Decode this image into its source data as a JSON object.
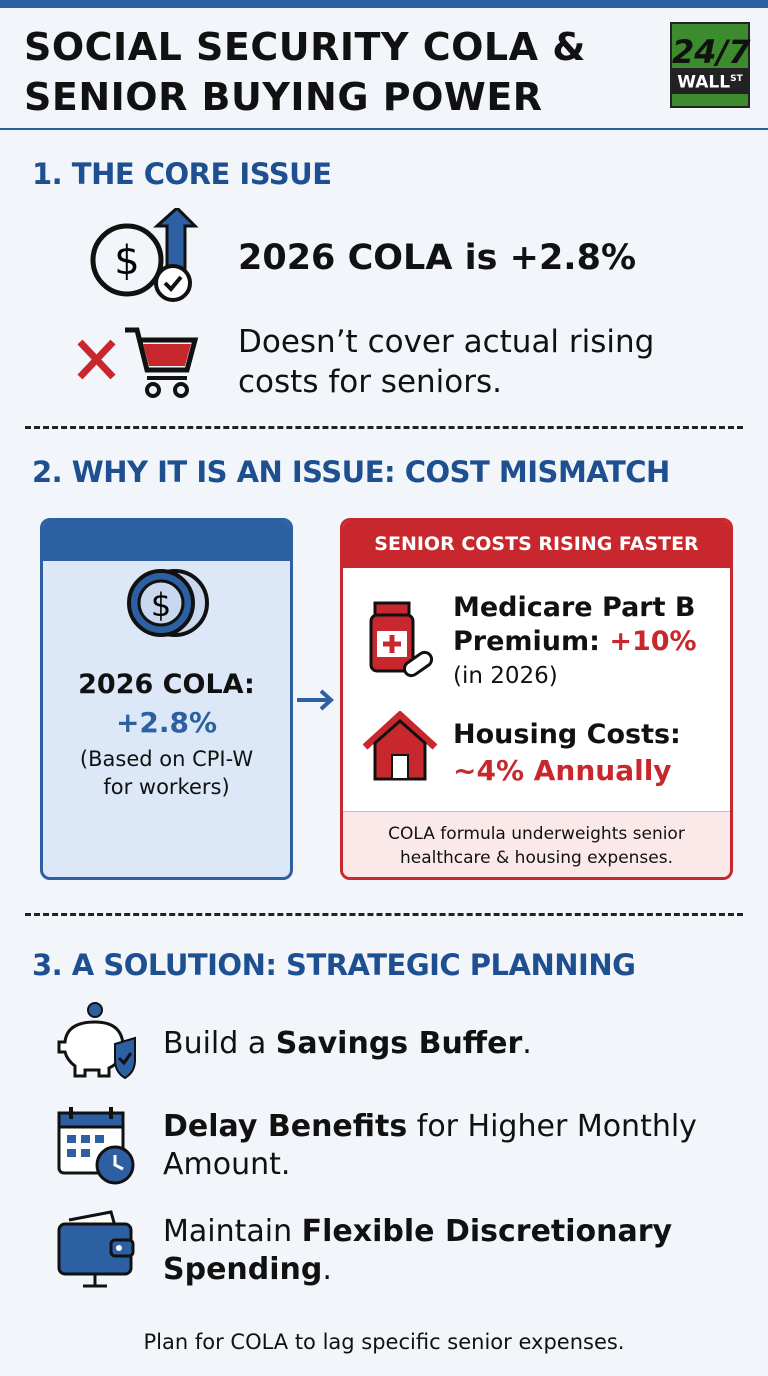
{
  "header": {
    "title_lines": [
      "SOCIAL SECURITY COLA &",
      "SENIOR BUYING POWER"
    ],
    "logo": {
      "top": "24/7",
      "bottom": "WALL",
      "sup": "ST"
    }
  },
  "section1": {
    "heading": "1. THE CORE ISSUE",
    "items": [
      "2026 COLA is +2.8%",
      "Doesn’t cover actual rising costs for seniors."
    ]
  },
  "section2": {
    "heading": "2. WHY IT IS AN ISSUE: COST MISMATCH",
    "left": {
      "title": "2026 COLA:",
      "value": "+2.8%",
      "note": "(Based on CPI-W for workers)"
    },
    "right": {
      "header": "SENIOR COSTS RISING FASTER",
      "items": [
        {
          "label": "Medicare Part B Premium: ",
          "value": "+10%",
          "note": "(in 2026)"
        },
        {
          "label": "Housing Costs:",
          "value": "~4% Annually"
        }
      ],
      "footer": "COLA formula underweights senior healthcare & housing expenses."
    }
  },
  "section3": {
    "heading": "3. A SOLUTION: STRATEGIC PLANNING",
    "items": [
      [
        "Build a ",
        "Savings Buffer",
        "."
      ],
      [
        "Delay Benefits",
        " for Higher Monthly Amount."
      ],
      [
        "Maintain ",
        "Flexible Discretionary Spending",
        "."
      ]
    ],
    "footer": "Plan for COLA to lag specific senior expenses."
  }
}
